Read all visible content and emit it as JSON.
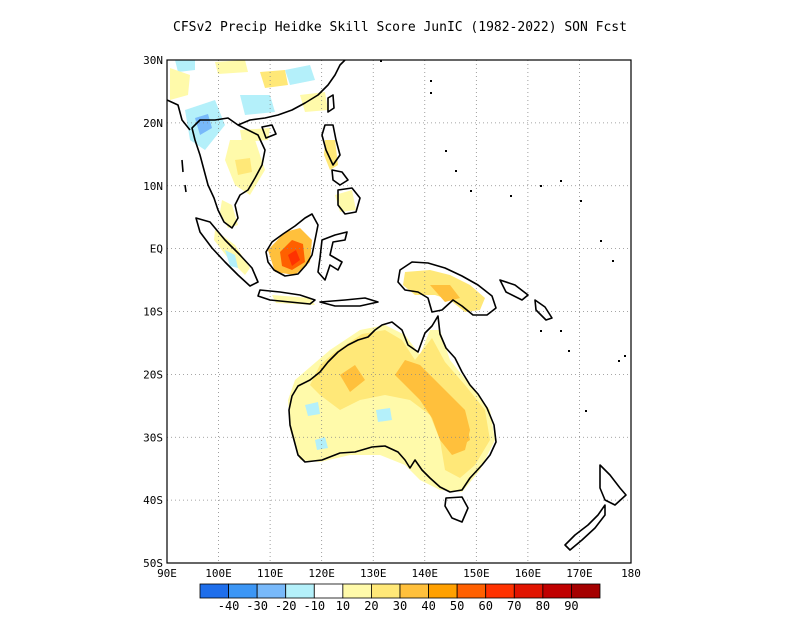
{
  "title": "CFSv2 Precip Heidke Skill Score JunIC (1982-2022) SON Fcst",
  "map": {
    "lon_range": [
      90,
      180
    ],
    "lat_range": [
      -50,
      30
    ],
    "lat_ticks": [
      {
        "value": 30,
        "label": "30N"
      },
      {
        "value": 20,
        "label": "20N"
      },
      {
        "value": 10,
        "label": "10N"
      },
      {
        "value": 0,
        "label": "EQ"
      },
      {
        "value": -10,
        "label": "10S"
      },
      {
        "value": -20,
        "label": "20S"
      },
      {
        "value": -30,
        "label": "30S"
      },
      {
        "value": -40,
        "label": "40S"
      },
      {
        "value": -50,
        "label": "50S"
      }
    ],
    "lon_ticks": [
      {
        "value": 90,
        "label": "90E"
      },
      {
        "value": 100,
        "label": "100E"
      },
      {
        "value": 110,
        "label": "110E"
      },
      {
        "value": 120,
        "label": "120E"
      },
      {
        "value": 130,
        "label": "130E"
      },
      {
        "value": 140,
        "label": "140E"
      },
      {
        "value": 150,
        "label": "150E"
      },
      {
        "value": 160,
        "label": "160E"
      },
      {
        "value": 170,
        "label": "170E"
      },
      {
        "value": 180,
        "label": "180"
      }
    ],
    "gridlines": "dotted"
  },
  "colorbar": {
    "colors": [
      "#1e6eeb",
      "#3c96f5",
      "#78b9fa",
      "#b4f0fa",
      "#ffffff",
      "#fffaaa",
      "#ffe878",
      "#ffc03c",
      "#ffa000",
      "#ff6000",
      "#ff3200",
      "#e11400",
      "#c00000",
      "#a50000"
    ],
    "labels": [
      "-40",
      "-30",
      "-20",
      "-10",
      "10",
      "20",
      "30",
      "40",
      "50",
      "60",
      "70",
      "80",
      "90"
    ]
  },
  "skill_regions": [
    {
      "name": "borneo-south",
      "level": 6
    },
    {
      "name": "borneo-core",
      "level": 9
    },
    {
      "name": "australia-north",
      "level": 7
    },
    {
      "name": "australia-east",
      "level": 7
    },
    {
      "name": "new-guinea",
      "level": 6
    },
    {
      "name": "philippines",
      "level": 6
    },
    {
      "name": "indochina",
      "level": 5
    },
    {
      "name": "china-south-negative",
      "level": 3
    }
  ]
}
